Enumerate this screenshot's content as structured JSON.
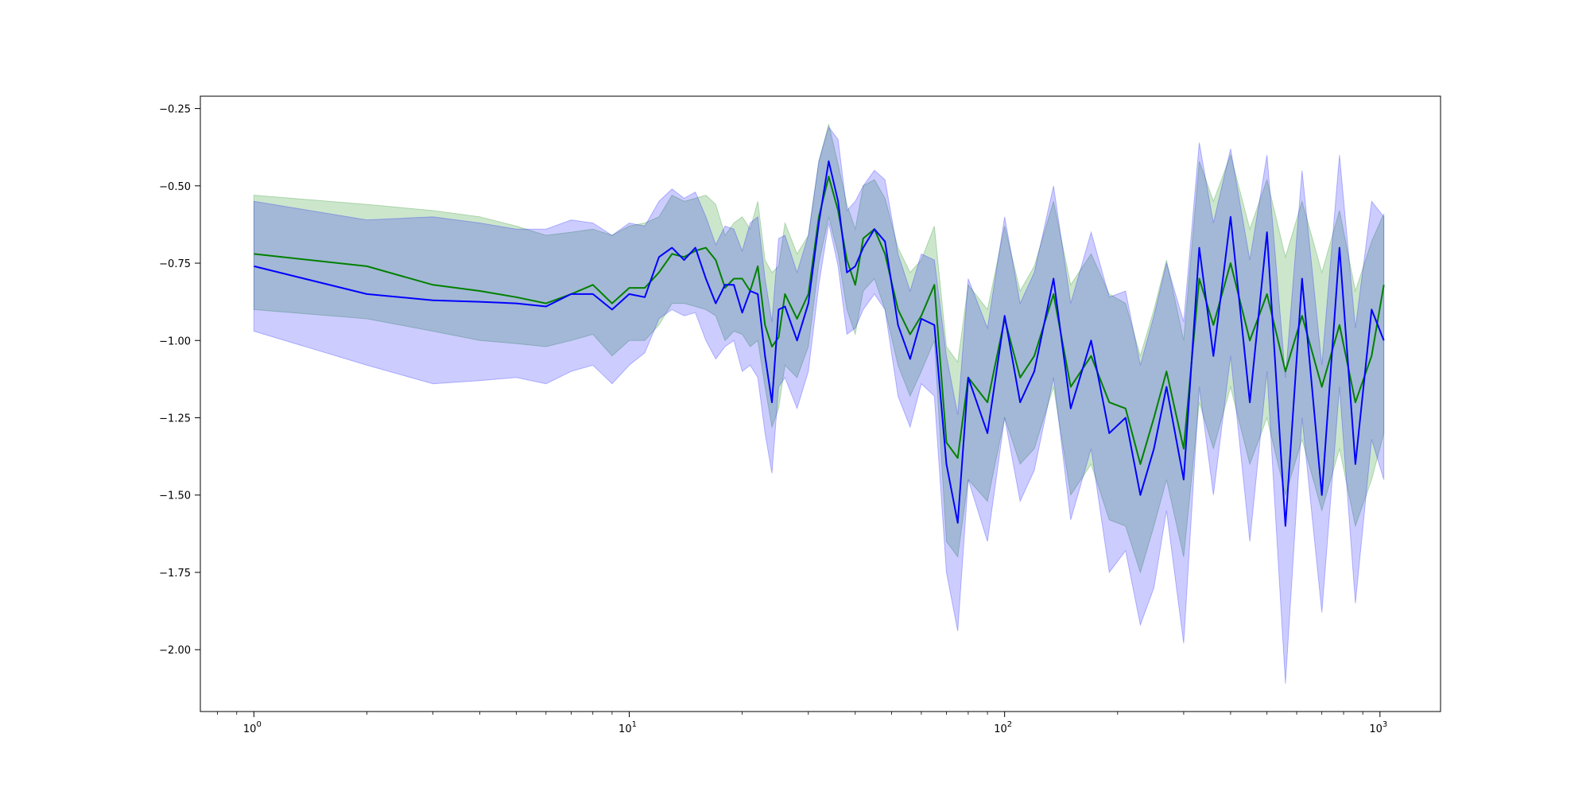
{
  "chart_data": {
    "type": "line",
    "xscale": "log",
    "xlim": [
      0.72,
      1450
    ],
    "ylim": [
      -2.2,
      -0.21
    ],
    "title": "",
    "xlabel": "",
    "ylabel": "",
    "grid": false,
    "legend": "none",
    "x_ticks": [
      {
        "value": 1,
        "base": "10",
        "exp": "0"
      },
      {
        "value": 10,
        "base": "10",
        "exp": "1"
      },
      {
        "value": 100,
        "base": "10",
        "exp": "2"
      },
      {
        "value": 1000,
        "base": "10",
        "exp": "3"
      }
    ],
    "y_ticks": [
      {
        "value": -0.25,
        "label": "−0.25"
      },
      {
        "value": -0.5,
        "label": "−0.50"
      },
      {
        "value": -0.75,
        "label": "−0.75"
      },
      {
        "value": -1.0,
        "label": "−1.00"
      },
      {
        "value": -1.25,
        "label": "−1.25"
      },
      {
        "value": -1.5,
        "label": "−1.50"
      },
      {
        "value": -1.75,
        "label": "−1.75"
      },
      {
        "value": -2.0,
        "label": "−2.00"
      }
    ],
    "series": [
      {
        "color": "#008000",
        "band_color": "#008000",
        "band_opacity": 0.2,
        "x": [
          1,
          2,
          3,
          4,
          5,
          6,
          7,
          8,
          9,
          10,
          11,
          12,
          13,
          14,
          15,
          16,
          17,
          18,
          19,
          20,
          21,
          22,
          23,
          24,
          25,
          26,
          28,
          30,
          32,
          34,
          36,
          38,
          40,
          42,
          45,
          48,
          52,
          56,
          60,
          65,
          70,
          75,
          80,
          90,
          100,
          110,
          120,
          135,
          150,
          170,
          190,
          210,
          230,
          250,
          270,
          300,
          330,
          360,
          400,
          450,
          500,
          560,
          620,
          700,
          780,
          860,
          950,
          1024
        ],
        "y": [
          -0.72,
          -0.76,
          -0.82,
          -0.84,
          -0.86,
          -0.88,
          -0.85,
          -0.82,
          -0.88,
          -0.83,
          -0.83,
          -0.78,
          -0.72,
          -0.73,
          -0.71,
          -0.7,
          -0.74,
          -0.83,
          -0.8,
          -0.8,
          -0.84,
          -0.76,
          -0.95,
          -1.02,
          -0.99,
          -0.85,
          -0.93,
          -0.85,
          -0.6,
          -0.47,
          -0.58,
          -0.74,
          -0.82,
          -0.67,
          -0.64,
          -0.72,
          -0.9,
          -0.98,
          -0.92,
          -0.82,
          -1.33,
          -1.38,
          -1.12,
          -1.2,
          -0.93,
          -1.12,
          -1.05,
          -0.85,
          -1.15,
          -1.05,
          -1.2,
          -1.22,
          -1.4,
          -1.25,
          -1.1,
          -1.35,
          -0.8,
          -0.95,
          -0.75,
          -1.0,
          -0.85,
          -1.1,
          -0.92,
          -1.15,
          -0.95,
          -1.2,
          -1.05,
          -0.82
        ],
        "lo": [
          -0.9,
          -0.93,
          -0.97,
          -1.0,
          -1.01,
          -1.02,
          -1.0,
          -0.98,
          -1.05,
          -1.0,
          -1.0,
          -0.95,
          -0.88,
          -0.88,
          -0.89,
          -0.9,
          -0.92,
          -1.0,
          -0.97,
          -0.98,
          -1.02,
          -1.0,
          -1.15,
          -1.28,
          -1.22,
          -1.08,
          -1.12,
          -1.02,
          -0.75,
          -0.6,
          -0.72,
          -0.9,
          -0.98,
          -0.84,
          -0.8,
          -0.9,
          -1.08,
          -1.18,
          -1.1,
          -1.0,
          -1.65,
          -1.7,
          -1.45,
          -1.52,
          -1.25,
          -1.4,
          -1.35,
          -1.15,
          -1.5,
          -1.4,
          -1.58,
          -1.6,
          -1.75,
          -1.6,
          -1.45,
          -1.7,
          -1.2,
          -1.35,
          -1.15,
          -1.4,
          -1.25,
          -1.5,
          -1.32,
          -1.55,
          -1.35,
          -1.6,
          -1.45,
          -1.3
        ],
        "hi": [
          -0.53,
          -0.56,
          -0.58,
          -0.6,
          -0.63,
          -0.66,
          -0.65,
          -0.64,
          -0.66,
          -0.63,
          -0.62,
          -0.6,
          -0.53,
          -0.55,
          -0.54,
          -0.53,
          -0.56,
          -0.66,
          -0.62,
          -0.6,
          -0.64,
          -0.55,
          -0.74,
          -0.78,
          -0.76,
          -0.62,
          -0.72,
          -0.66,
          -0.42,
          -0.3,
          -0.43,
          -0.56,
          -0.64,
          -0.5,
          -0.48,
          -0.54,
          -0.7,
          -0.78,
          -0.74,
          -0.63,
          -1.02,
          -1.07,
          -0.82,
          -0.9,
          -0.63,
          -0.84,
          -0.76,
          -0.55,
          -0.82,
          -0.72,
          -0.85,
          -0.88,
          -1.05,
          -0.9,
          -0.74,
          -1.0,
          -0.42,
          -0.55,
          -0.4,
          -0.64,
          -0.48,
          -0.73,
          -0.55,
          -0.78,
          -0.58,
          -0.84,
          -0.68,
          -0.59
        ]
      },
      {
        "color": "#0000ff",
        "band_color": "#0000ff",
        "band_opacity": 0.2,
        "x": [
          1,
          2,
          3,
          4,
          5,
          6,
          7,
          8,
          9,
          10,
          11,
          12,
          13,
          14,
          15,
          16,
          17,
          18,
          19,
          20,
          21,
          22,
          23,
          24,
          25,
          26,
          28,
          30,
          32,
          34,
          36,
          38,
          40,
          42,
          45,
          48,
          52,
          56,
          60,
          65,
          70,
          75,
          80,
          90,
          100,
          110,
          120,
          135,
          150,
          170,
          190,
          210,
          230,
          250,
          270,
          300,
          330,
          360,
          400,
          450,
          500,
          560,
          620,
          700,
          780,
          860,
          950,
          1024
        ],
        "y": [
          -0.76,
          -0.85,
          -0.87,
          -0.875,
          -0.88,
          -0.89,
          -0.85,
          -0.85,
          -0.9,
          -0.85,
          -0.86,
          -0.73,
          -0.7,
          -0.74,
          -0.7,
          -0.8,
          -0.88,
          -0.82,
          -0.82,
          -0.91,
          -0.84,
          -0.85,
          -1.05,
          -1.2,
          -0.9,
          -0.89,
          -1.0,
          -0.88,
          -0.62,
          -0.42,
          -0.55,
          -0.78,
          -0.76,
          -0.7,
          -0.64,
          -0.68,
          -0.95,
          -1.06,
          -0.93,
          -0.95,
          -1.4,
          -1.59,
          -1.12,
          -1.3,
          -0.92,
          -1.2,
          -1.1,
          -0.8,
          -1.22,
          -1.0,
          -1.3,
          -1.25,
          -1.5,
          -1.35,
          -1.15,
          -1.45,
          -0.7,
          -1.05,
          -0.6,
          -1.2,
          -0.65,
          -1.6,
          -0.8,
          -1.5,
          -0.7,
          -1.4,
          -0.9,
          -1.0
        ],
        "lo": [
          -0.97,
          -1.08,
          -1.14,
          -1.13,
          -1.12,
          -1.14,
          -1.1,
          -1.08,
          -1.14,
          -1.08,
          -1.04,
          -0.93,
          -0.9,
          -0.92,
          -0.91,
          -1.0,
          -1.06,
          -1.02,
          -1.0,
          -1.1,
          -1.08,
          -1.12,
          -1.3,
          -1.43,
          -1.15,
          -1.12,
          -1.22,
          -1.1,
          -0.82,
          -0.62,
          -0.76,
          -0.98,
          -0.96,
          -0.9,
          -0.85,
          -0.9,
          -1.18,
          -1.28,
          -1.14,
          -1.18,
          -1.75,
          -1.94,
          -1.45,
          -1.65,
          -1.25,
          -1.52,
          -1.42,
          -1.12,
          -1.58,
          -1.35,
          -1.75,
          -1.68,
          -1.92,
          -1.8,
          -1.55,
          -1.98,
          -1.15,
          -1.5,
          -1.05,
          -1.65,
          -1.1,
          -2.11,
          -1.25,
          -1.88,
          -1.15,
          -1.85,
          -1.32,
          -1.45
        ],
        "hi": [
          -0.55,
          -0.61,
          -0.6,
          -0.62,
          -0.64,
          -0.64,
          -0.61,
          -0.62,
          -0.66,
          -0.62,
          -0.63,
          -0.55,
          -0.51,
          -0.54,
          -0.52,
          -0.6,
          -0.69,
          -0.63,
          -0.64,
          -0.71,
          -0.62,
          -0.6,
          -0.8,
          -0.94,
          -0.67,
          -0.66,
          -0.78,
          -0.66,
          -0.42,
          -0.31,
          -0.35,
          -0.58,
          -0.55,
          -0.5,
          -0.45,
          -0.48,
          -0.72,
          -0.84,
          -0.72,
          -0.74,
          -1.05,
          -1.24,
          -0.8,
          -0.96,
          -0.6,
          -0.88,
          -0.78,
          -0.5,
          -0.88,
          -0.65,
          -0.86,
          -0.84,
          -1.08,
          -0.92,
          -0.75,
          -0.94,
          -0.36,
          -0.62,
          -0.38,
          -0.74,
          -0.4,
          -1.12,
          -0.45,
          -1.08,
          -0.4,
          -0.96,
          -0.55,
          -0.6
        ]
      }
    ]
  }
}
